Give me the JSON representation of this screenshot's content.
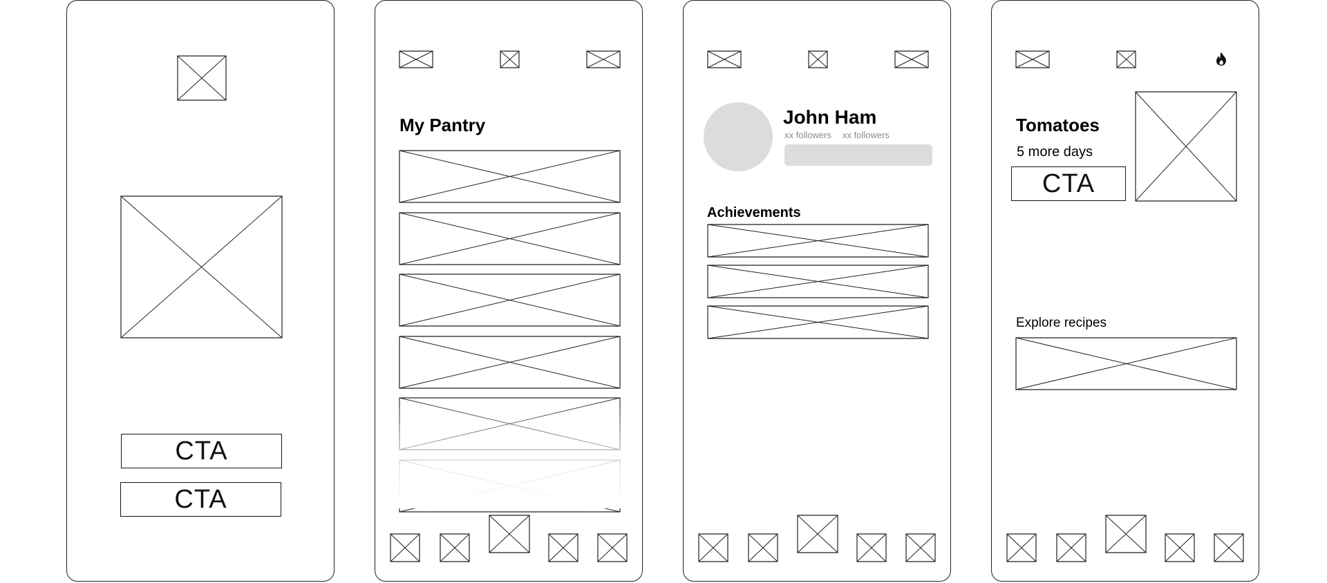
{
  "colors": {
    "stroke": "#1f1f1f",
    "placeholder_gray": "#dcdcdc",
    "muted_text": "#8a8a8a",
    "background": "#ffffff"
  },
  "screen1": {
    "cta_primary": "CTA",
    "cta_secondary": "CTA"
  },
  "screen2": {
    "title": "My Pantry",
    "item_count": 6
  },
  "screen3": {
    "name": "John Ham",
    "stat_1": "xx followers",
    "stat_2": "xx followers",
    "section_title": "Achievements",
    "achievement_count": 3
  },
  "screen4": {
    "title": "Tomatoes",
    "subtitle": "5 more days",
    "cta": "CTA",
    "section_title": "Explore recipes",
    "top_right_icon": "flame-icon"
  },
  "nav": {
    "item_count": 5,
    "center_item_raised": true
  }
}
